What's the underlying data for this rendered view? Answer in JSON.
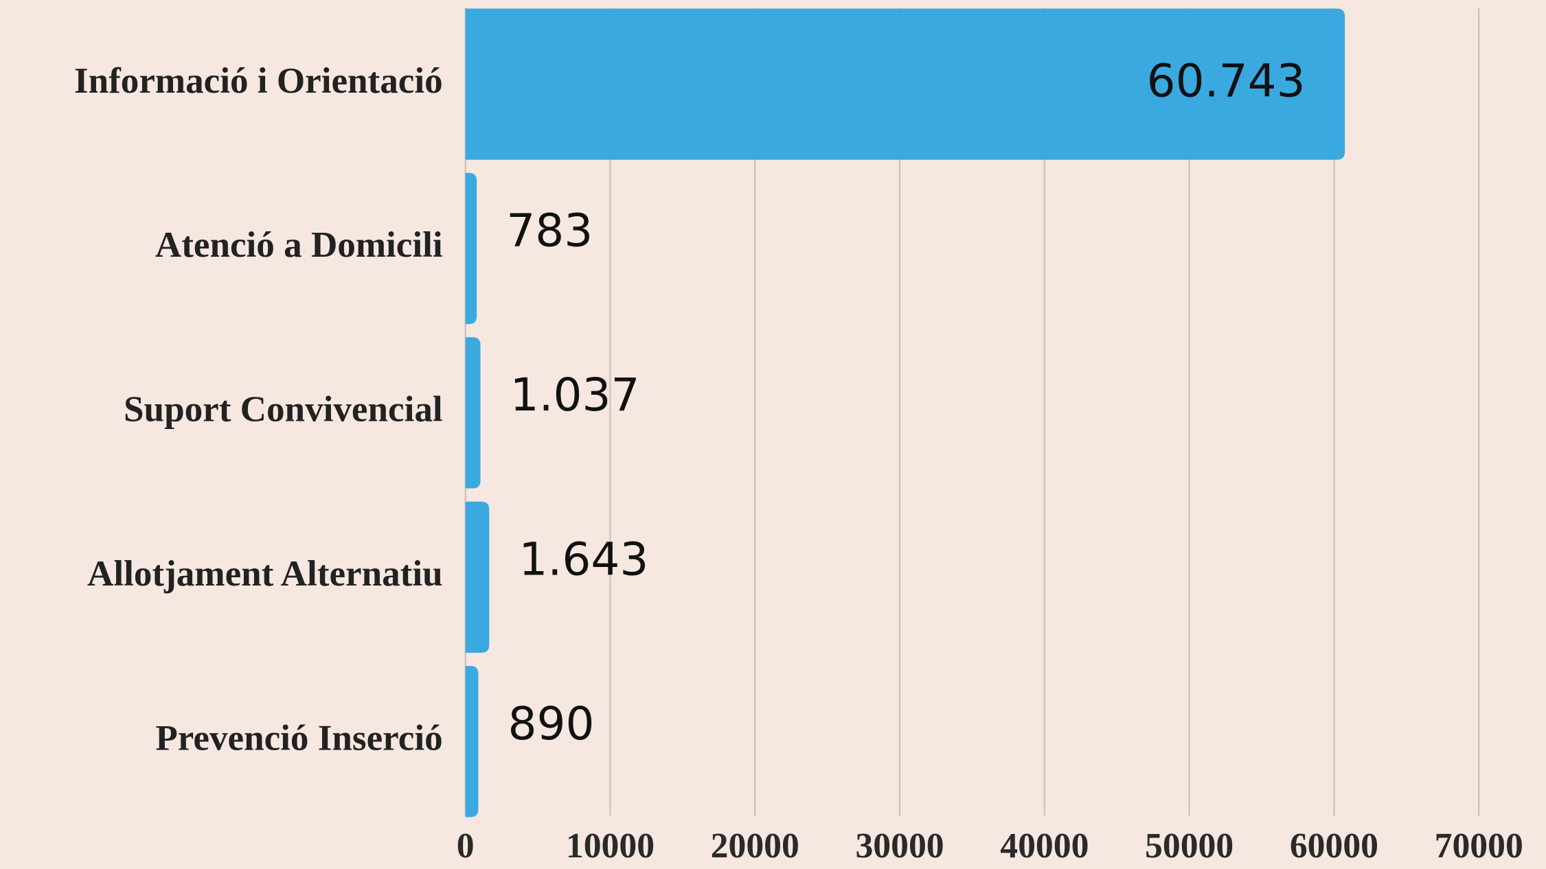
{
  "chart_data": {
    "type": "bar",
    "orientation": "horizontal",
    "categories": [
      "Informació i Orientació",
      "Atenció a Domicili",
      "Suport Convivencial",
      "Allotjament Alternatiu",
      "Prevenció Inserció"
    ],
    "values": [
      60743,
      783,
      1037,
      1643,
      890
    ],
    "value_labels": [
      "60.743",
      "783",
      "1.037",
      "1.643",
      "890"
    ],
    "color": "#3aa9e0",
    "xlim": [
      0,
      70000
    ],
    "xticks": [
      0,
      10000,
      20000,
      30000,
      40000,
      50000,
      60000,
      70000
    ],
    "grid": true
  }
}
